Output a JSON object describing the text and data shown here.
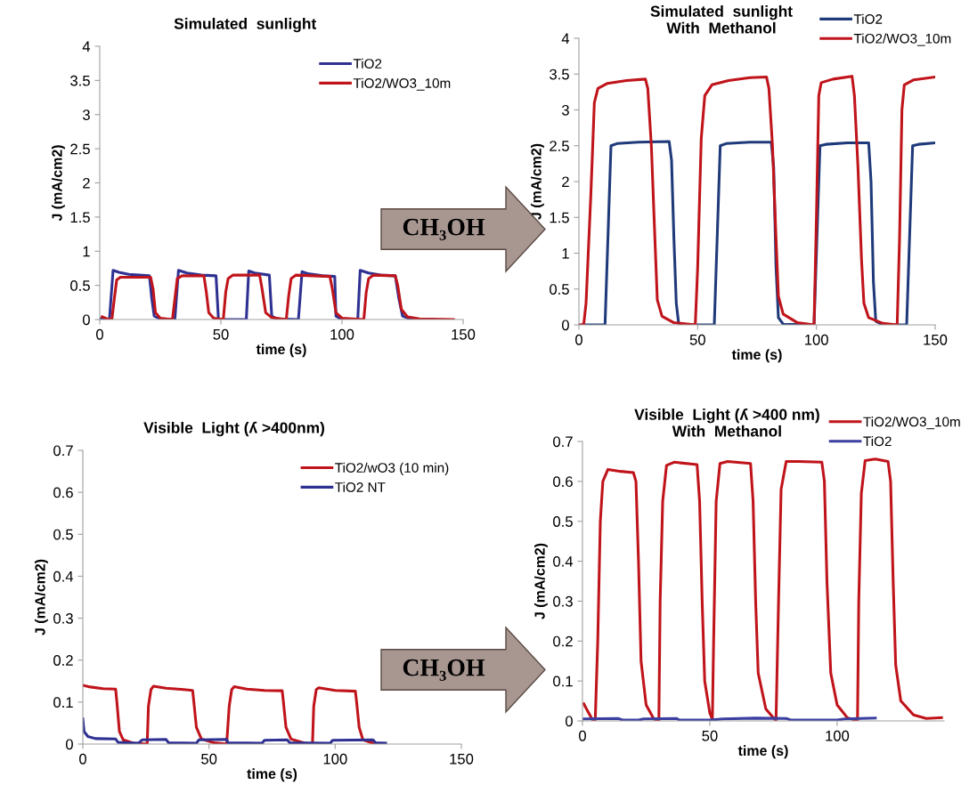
{
  "chart_data": [
    {
      "type": "line",
      "title": "Simulated  sunlight",
      "xlabel": "time (s)",
      "ylabel": "J (mA/cm2)",
      "xlim": [
        0,
        150
      ],
      "xticks": [
        0,
        50,
        100,
        150
      ],
      "ylim": [
        0,
        4
      ],
      "yticks": [
        0,
        0.5,
        1,
        1.5,
        2,
        2.5,
        3,
        3.5,
        4
      ],
      "legend": "top right",
      "grid": false,
      "annotations": [
        "CH₃OH"
      ],
      "series": [
        {
          "name": "TiO2",
          "color": "#2e3192",
          "x": [
            0,
            4,
            5.5,
            8,
            12,
            20.5,
            21.5,
            22.5,
            25,
            31,
            32.5,
            36,
            42,
            48,
            49,
            60.5,
            61.5,
            64,
            70,
            71,
            73,
            82,
            83.5,
            86,
            92,
            97,
            97.5,
            100,
            106.5,
            107.5,
            111,
            116,
            122,
            123.5,
            125,
            128,
            132
          ],
          "values": [
            0.01,
            0.0,
            0.72,
            0.69,
            0.66,
            0.64,
            0.3,
            0.05,
            0.01,
            0.0,
            0.72,
            0.68,
            0.65,
            0.64,
            0.0,
            0.0,
            0.71,
            0.68,
            0.65,
            0.05,
            0.01,
            0.0,
            0.7,
            0.67,
            0.64,
            0.63,
            0.05,
            0.0,
            0.0,
            0.72,
            0.68,
            0.65,
            0.64,
            0.3,
            0.05,
            0.01,
            0.0
          ]
        },
        {
          "name": "TiO2/WO3_10m",
          "color": "#c0141b",
          "x": [
            1,
            3,
            5,
            6,
            7,
            8.5,
            21,
            22,
            23,
            25,
            30,
            31,
            32,
            34,
            43,
            44,
            45,
            47,
            51,
            52,
            53,
            55,
            66,
            67,
            68.5,
            71,
            77,
            78,
            79,
            81,
            95,
            96,
            97.5,
            100,
            109,
            110,
            111,
            113,
            122,
            123,
            124.5,
            127,
            132,
            146
          ],
          "values": [
            0.04,
            0.01,
            0.0,
            0.3,
            0.58,
            0.62,
            0.62,
            0.45,
            0.1,
            0.02,
            0.0,
            0.3,
            0.6,
            0.64,
            0.64,
            0.4,
            0.1,
            0.02,
            0.0,
            0.4,
            0.6,
            0.65,
            0.65,
            0.45,
            0.1,
            0.03,
            0.0,
            0.35,
            0.6,
            0.65,
            0.63,
            0.45,
            0.1,
            0.02,
            0.0,
            0.4,
            0.6,
            0.65,
            0.64,
            0.5,
            0.15,
            0.04,
            0.01,
            0.0
          ]
        }
      ]
    },
    {
      "type": "line",
      "title": "Simulated  sunlight\nWith  Methanol",
      "xlabel": "time (s)",
      "ylabel": "J (mA/cm2)",
      "xlim": [
        0,
        150
      ],
      "xticks": [
        0,
        50,
        100,
        150
      ],
      "ylim": [
        0,
        4
      ],
      "yticks": [
        0,
        0.5,
        1,
        1.5,
        2,
        2.5,
        3,
        3.5,
        4
      ],
      "legend": "top",
      "grid": false,
      "series": [
        {
          "name": "TiO2",
          "color": "#1f3a7a",
          "x": [
            0,
            11,
            12.5,
            13.5,
            16,
            25,
            38,
            39,
            40,
            41,
            42,
            45,
            57,
            58.5,
            59.5,
            62,
            72,
            81,
            82,
            83,
            84,
            86,
            99,
            100.5,
            101.5,
            104,
            113,
            122,
            123,
            124,
            125,
            128,
            138,
            139.5,
            140.5,
            143,
            150
          ],
          "values": [
            0,
            0,
            1.5,
            2.5,
            2.53,
            2.55,
            2.56,
            2.3,
            1.2,
            0.3,
            0.02,
            0.0,
            0.0,
            1.5,
            2.5,
            2.53,
            2.55,
            2.55,
            2.2,
            0.8,
            0.1,
            0.01,
            0.0,
            1.5,
            2.5,
            2.52,
            2.54,
            2.54,
            2.0,
            0.6,
            0.05,
            0.0,
            0.0,
            1.5,
            2.5,
            2.52,
            2.54
          ]
        },
        {
          "name": "TiO2/WO3_10m",
          "color": "#c0141b",
          "x": [
            0,
            2,
            3,
            5,
            6.5,
            8,
            12,
            20,
            28,
            29,
            30.5,
            32,
            33,
            35,
            40,
            49,
            50,
            51.5,
            53,
            56,
            63,
            72,
            79,
            80,
            81.5,
            83,
            84,
            86,
            92,
            99,
            100,
            101,
            102,
            107,
            115,
            116,
            117.5,
            119,
            120,
            122,
            128,
            134,
            135,
            136,
            137,
            141,
            150
          ],
          "values": [
            0,
            0,
            0.3,
            1.8,
            3.1,
            3.3,
            3.37,
            3.41,
            3.43,
            3.3,
            2.5,
            1.2,
            0.35,
            0.12,
            0.03,
            0.0,
            0.8,
            2.6,
            3.2,
            3.35,
            3.41,
            3.45,
            3.46,
            3.3,
            2.5,
            1.2,
            0.4,
            0.15,
            0.03,
            0.0,
            1.5,
            3.2,
            3.38,
            3.43,
            3.47,
            3.2,
            2.2,
            0.9,
            0.3,
            0.1,
            0.02,
            0.0,
            1.2,
            3.0,
            3.35,
            3.42,
            3.46
          ]
        }
      ]
    },
    {
      "type": "line",
      "title": "Visible  Light (ʎ >400nm)",
      "xlabel": "time (s)",
      "ylabel": "J (mA/cm2)",
      "xlim": [
        0,
        150
      ],
      "xticks": [
        0,
        50,
        100,
        150
      ],
      "ylim": [
        0,
        0.7
      ],
      "yticks": [
        0,
        0.1,
        0.2,
        0.3,
        0.4,
        0.5,
        0.6,
        0.7
      ],
      "legend": "top right",
      "grid": false,
      "annotations": [
        "CH₃OH"
      ],
      "series": [
        {
          "name": "TiO2/wO3 (10 min)",
          "color": "#c0141b",
          "x": [
            0,
            3,
            8,
            13,
            13.5,
            14.5,
            16,
            20,
            25.5,
            26,
            27,
            28,
            33,
            40,
            43.5,
            44,
            45,
            47,
            52,
            57,
            58,
            59,
            60,
            65,
            72,
            79,
            79.5,
            80.5,
            82.5,
            88,
            91,
            91.5,
            92.5,
            93.5,
            100,
            108,
            108.5,
            109.5,
            111,
            116
          ],
          "values": [
            0.14,
            0.136,
            0.132,
            0.131,
            0.1,
            0.03,
            0.01,
            0.002,
            0.0,
            0.09,
            0.13,
            0.138,
            0.133,
            0.13,
            0.128,
            0.1,
            0.04,
            0.012,
            0.003,
            0.0,
            0.09,
            0.13,
            0.137,
            0.131,
            0.128,
            0.127,
            0.1,
            0.04,
            0.012,
            0.002,
            0.0,
            0.09,
            0.13,
            0.134,
            0.128,
            0.126,
            0.1,
            0.04,
            0.01,
            0.0
          ]
        },
        {
          "name": "TiO2 NT",
          "color": "#2e3192",
          "x": [
            0,
            0.5,
            2,
            5,
            13,
            14,
            22,
            23.5,
            33,
            34,
            45,
            46,
            57,
            57.5,
            71,
            72,
            81,
            82,
            98,
            99,
            115,
            116,
            120
          ],
          "values": [
            0.06,
            0.03,
            0.018,
            0.013,
            0.012,
            0.004,
            0.002,
            0.01,
            0.011,
            0.003,
            0.002,
            0.01,
            0.011,
            0.003,
            0.002,
            0.009,
            0.01,
            0.003,
            0.002,
            0.009,
            0.01,
            0.003,
            0.002
          ]
        }
      ]
    },
    {
      "type": "line",
      "title": "Visible  Light (ʎ >400 nm)\nWith  Methanol",
      "xlabel": "time (s)",
      "ylabel": "J (mA/cm2)",
      "xlim": [
        0,
        142
      ],
      "xticks": [
        0,
        50,
        100
      ],
      "ylim": [
        0,
        0.7
      ],
      "yticks": [
        0,
        0.1,
        0.2,
        0.3,
        0.4,
        0.5,
        0.6,
        0.7
      ],
      "legend": "top",
      "grid": false,
      "series": [
        {
          "name": "TiO2/WO3_10m",
          "color": "#c0141b",
          "x": [
            0.5,
            2,
            4,
            5,
            6,
            7,
            8,
            10,
            15,
            20,
            21,
            22,
            23,
            25,
            28,
            30,
            30.5,
            31.5,
            33,
            36,
            45,
            46,
            47,
            48,
            50,
            51,
            51.5,
            52.5,
            54,
            57,
            66,
            67,
            68,
            69,
            72,
            76,
            77,
            78,
            80,
            85,
            94,
            95,
            96,
            97.5,
            100,
            104,
            108,
            108.5,
            109.5,
            111,
            115,
            120,
            121,
            122,
            123,
            125,
            130,
            135,
            141
          ],
          "values": [
            0.043,
            0.025,
            0.002,
            0.0,
            0.2,
            0.5,
            0.6,
            0.63,
            0.625,
            0.622,
            0.6,
            0.4,
            0.15,
            0.04,
            0.005,
            0.0,
            0.3,
            0.55,
            0.64,
            0.648,
            0.642,
            0.55,
            0.3,
            0.1,
            0.02,
            0.004,
            0.2,
            0.55,
            0.645,
            0.65,
            0.645,
            0.55,
            0.3,
            0.12,
            0.03,
            0.0,
            0.3,
            0.58,
            0.65,
            0.65,
            0.648,
            0.6,
            0.35,
            0.12,
            0.04,
            0.008,
            0.0,
            0.3,
            0.57,
            0.652,
            0.656,
            0.65,
            0.6,
            0.35,
            0.14,
            0.05,
            0.015,
            0.006,
            0.008
          ]
        },
        {
          "name": "TiO2",
          "color": "#3a3fa0",
          "x": [
            0,
            14,
            16,
            22,
            24,
            37,
            38,
            50,
            55,
            68,
            80,
            82,
            100,
            103,
            115
          ],
          "values": [
            0.005,
            0.006,
            0.002,
            0.002,
            0.005,
            0.006,
            0.002,
            0.002,
            0.005,
            0.007,
            0.006,
            0.002,
            0.002,
            0.005,
            0.007
          ]
        }
      ]
    }
  ]
}
